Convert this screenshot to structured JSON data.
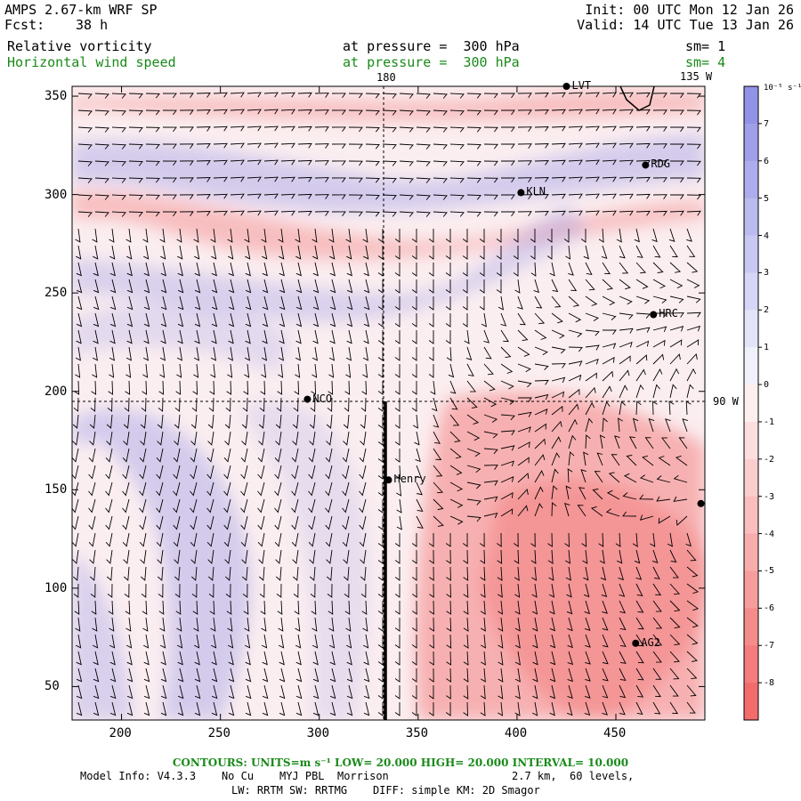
{
  "header": {
    "model": "AMPS 2.67-km WRF SP",
    "fcst_label": "Fcst:",
    "fcst_value": "38 h",
    "init": "Init: 00 UTC Mon 12 Jan 26",
    "valid": "Valid: 14 UTC Tue 13 Jan 26",
    "field1": "Relative vorticity",
    "field1_pressure": "at pressure =  300 hPa",
    "field1_sm": "sm= 1",
    "field2": "Horizontal wind speed",
    "field2_pressure": "at pressure =  300 hPa",
    "field2_sm": "sm= 4"
  },
  "map": {
    "x_ticks": [
      "200",
      "250",
      "300",
      "350",
      "400",
      "450"
    ],
    "y_ticks": [
      "50",
      "100",
      "150",
      "200",
      "250",
      "300",
      "350"
    ],
    "x_range": [
      175,
      495
    ],
    "y_range": [
      33,
      355
    ],
    "meridian_labels": {
      "lon180": "180",
      "lon135w": "135 W",
      "lat90w": "90 W"
    },
    "stations": [
      {
        "name": "RDG",
        "x": 465,
        "y": 315
      },
      {
        "name": "KLN",
        "x": 402,
        "y": 301
      },
      {
        "name": "HRC",
        "x": 469,
        "y": 239
      },
      {
        "name": "NCO",
        "x": 294,
        "y": 196
      },
      {
        "name": "Henry",
        "x": 335,
        "y": 155
      },
      {
        "name": "AG2",
        "x": 460,
        "y": 72
      },
      {
        "name": "LVT",
        "x": 425,
        "y": 355
      }
    ],
    "unlabeled_points": [
      {
        "x": 493,
        "y": 143
      }
    ]
  },
  "colorbar": {
    "unit_label": "10⁻⁵ s⁻¹",
    "labels": [
      "7",
      "6",
      "5",
      "4",
      "3",
      "2",
      "1",
      "0",
      "-1",
      "-2",
      "-3",
      "-4",
      "-5",
      "-6",
      "-7",
      "-8"
    ]
  },
  "footer": {
    "contours": "CONTOURS:  UNITS=m s⁻¹  LOW=  20.000      HIGH=  20.000      INTERVAL=   10.000",
    "model_info": "Model Info: V4.3.3    No Cu    MYJ PBL  Morrison",
    "resolution": "2.7 km,  60 levels,",
    "physics": "LW: RRTM SW: RRTMG    DIFF: simple KM: 2D Smagor"
  },
  "colors": {
    "positive": "#8c8ce6",
    "negative": "#f26464",
    "label_green": "#1a8a1a"
  }
}
